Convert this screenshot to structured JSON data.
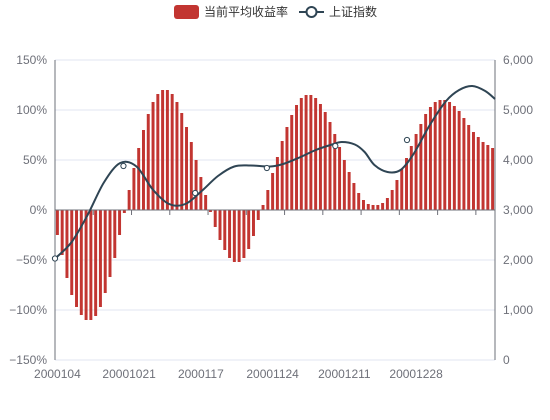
{
  "chart_data": {
    "type": "bar",
    "legend": {
      "placement": "top-center",
      "items": [
        {
          "label": "当前平均收益率",
          "kind": "bar",
          "color": "#c23531"
        },
        {
          "label": "上证指数",
          "kind": "line",
          "color": "#2f4554"
        }
      ]
    },
    "grid": true,
    "x_axis": {
      "tick_labels": [
        "2000104",
        "20001021",
        "2000117",
        "20001124",
        "20001211",
        "20001228"
      ]
    },
    "y_axis_left": {
      "min": -150,
      "max": 150,
      "interval": 50,
      "tick_labels": [
        "−150%",
        "−100%",
        "−50%",
        "0%",
        "50%",
        "100%",
        "150%"
      ]
    },
    "y_axis_right": {
      "min": 0,
      "max": 6000,
      "interval": 1000,
      "tick_labels": [
        "0",
        "1,000",
        "2,000",
        "3,000",
        "4,000",
        "5,000",
        "6,000"
      ]
    },
    "series": [
      {
        "name": "当前平均收益率",
        "type": "bar",
        "axis": "left",
        "color": "#c23531",
        "values": [
          -25,
          -45,
          -68,
          -85,
          -97,
          -105,
          -110,
          -110,
          -106,
          -97,
          -83,
          -67,
          -48,
          -25,
          -3,
          20,
          42,
          62,
          80,
          96,
          108,
          116,
          120,
          120,
          116,
          108,
          97,
          83,
          68,
          50,
          33,
          15,
          -2,
          -17,
          -30,
          -40,
          -48,
          -52,
          -52,
          -48,
          -39,
          -26,
          -10,
          5,
          20,
          37,
          53,
          69,
          83,
          95,
          105,
          112,
          115,
          115,
          112,
          106,
          98,
          88,
          76,
          63,
          50,
          38,
          27,
          17,
          10,
          6,
          5,
          5,
          7,
          12,
          20,
          30,
          41,
          52,
          64,
          76,
          86,
          96,
          103,
          108,
          110,
          110,
          108,
          104,
          99,
          92,
          85,
          78,
          73,
          68,
          65,
          62
        ]
      },
      {
        "name": "上证指数",
        "type": "line",
        "axis": "right",
        "color": "#2f4554",
        "smooth": true,
        "points": [
          [
            0,
            2030
          ],
          [
            5,
            2350
          ],
          [
            10,
            2900
          ],
          [
            15,
            3550
          ],
          [
            20,
            3940
          ],
          [
            25,
            3870
          ],
          [
            30,
            3410
          ],
          [
            35,
            3120
          ],
          [
            40,
            3120
          ],
          [
            45,
            3380
          ],
          [
            50,
            3680
          ],
          [
            55,
            3870
          ],
          [
            60,
            3890
          ],
          [
            66,
            3870
          ],
          [
            70,
            3920
          ],
          [
            75,
            4050
          ],
          [
            80,
            4200
          ],
          [
            85,
            4310
          ],
          [
            88,
            4360
          ],
          [
            92,
            4310
          ],
          [
            95,
            4160
          ],
          [
            98,
            3900
          ],
          [
            102,
            3760
          ],
          [
            106,
            3800
          ],
          [
            110,
            4120
          ],
          [
            115,
            4700
          ],
          [
            120,
            5180
          ],
          [
            124,
            5400
          ],
          [
            128,
            5480
          ],
          [
            132,
            5380
          ],
          [
            135,
            5220
          ]
        ],
        "markers": [
          [
            0,
            2030
          ],
          [
            21,
            3880
          ],
          [
            43,
            3340
          ],
          [
            65,
            3840
          ],
          [
            86,
            4280
          ],
          [
            108,
            4400
          ]
        ],
        "x_extent": 135
      }
    ]
  }
}
